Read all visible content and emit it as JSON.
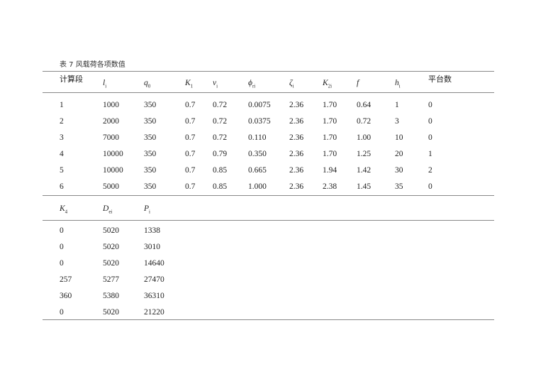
{
  "caption": "表 7 风载荷各项数值",
  "table1": {
    "headers": [
      {
        "main": "计算段",
        "sub": "",
        "cn": true
      },
      {
        "main": "l",
        "sub": "i"
      },
      {
        "main": "q",
        "sub": "0"
      },
      {
        "main": "K",
        "sub": "1"
      },
      {
        "main": "v",
        "sub": "i"
      },
      {
        "main": "ϕ",
        "sub": "ri"
      },
      {
        "main": "ζ",
        "sub": "i"
      },
      {
        "main": "K",
        "sub": "2i"
      },
      {
        "main": "f",
        "sub": ""
      },
      {
        "main": "h",
        "sub": "i"
      },
      {
        "main": "平台数",
        "sub": "",
        "cn": true
      }
    ],
    "rows": [
      [
        "1",
        "1000",
        "350",
        "0.7",
        "0.72",
        "0.0075",
        "2.36",
        "1.70",
        "0.64",
        "1",
        "0"
      ],
      [
        "2",
        "2000",
        "350",
        "0.7",
        "0.72",
        "0.0375",
        "2.36",
        "1.70",
        "0.72",
        "3",
        "0"
      ],
      [
        "3",
        "7000",
        "350",
        "0.7",
        "0.72",
        "0.110",
        "2.36",
        "1.70",
        "1.00",
        "10",
        "0"
      ],
      [
        "4",
        "10000",
        "350",
        "0.7",
        "0.79",
        "0.350",
        "2.36",
        "1.70",
        "1.25",
        "20",
        "1"
      ],
      [
        "5",
        "10000",
        "350",
        "0.7",
        "0.85",
        "0.665",
        "2.36",
        "1.94",
        "1.42",
        "30",
        "2"
      ],
      [
        "6",
        "5000",
        "350",
        "0.7",
        "0.85",
        "1.000",
        "2.36",
        "2.38",
        "1.45",
        "35",
        "0"
      ]
    ]
  },
  "table2": {
    "headers": [
      {
        "main": "K",
        "sub": "4"
      },
      {
        "main": "D",
        "sub": "ei"
      },
      {
        "main": "P",
        "sub": "i"
      }
    ],
    "rows": [
      [
        "0",
        "5020",
        "1338"
      ],
      [
        "0",
        "5020",
        "3010"
      ],
      [
        "0",
        "5020",
        "14640"
      ],
      [
        "257",
        "5277",
        "27470"
      ],
      [
        "360",
        "5380",
        "36310"
      ],
      [
        "0",
        "5020",
        "21220"
      ]
    ]
  }
}
